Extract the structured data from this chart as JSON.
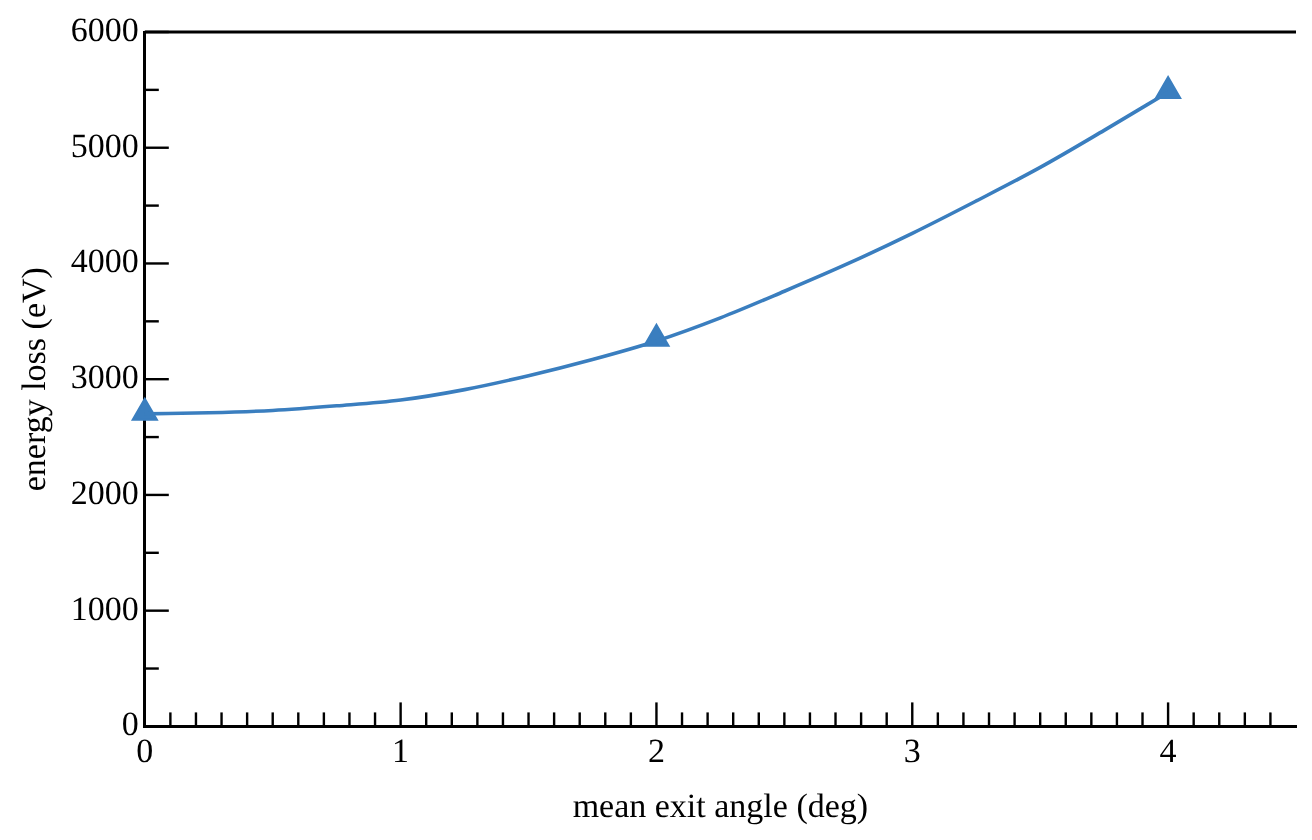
{
  "chart_data": {
    "type": "line",
    "xlabel": "mean exit angle (deg)",
    "ylabel": "energy loss (eV)",
    "series": [
      {
        "color": "#3a7ebf",
        "marker": "none",
        "x": [
          0,
          0.25,
          0.5,
          0.75,
          1,
          1.25,
          1.5,
          1.75,
          2,
          2.25,
          2.5,
          2.75,
          3,
          3.25,
          3.5,
          3.75,
          4
        ],
        "values": [
          2700,
          2710,
          2730,
          2770,
          2820,
          2910,
          3030,
          3170,
          3330,
          3530,
          3760,
          4000,
          4260,
          4540,
          4830,
          5150,
          5480
        ]
      },
      {
        "type": "scatter",
        "color": "#3a7ebf",
        "marker": "triangle",
        "x": [
          0,
          2,
          4
        ],
        "values": [
          2710,
          3350,
          5490
        ]
      }
    ],
    "xlim": [
      0,
      4.5
    ],
    "xticks": [
      0,
      {
        "value": 0.1,
        "label": null
      },
      {
        "value": 0.2,
        "label": null
      },
      {
        "value": 0.3,
        "label": null
      },
      {
        "value": 0.4,
        "label": null
      },
      {
        "value": 0.5,
        "label": null
      },
      {
        "value": 0.6,
        "label": null
      },
      {
        "value": 0.7,
        "label": null
      },
      {
        "value": 0.8,
        "label": null
      },
      {
        "value": 0.9,
        "label": null
      },
      1,
      {
        "value": 1.1,
        "label": null
      },
      {
        "value": 1.2,
        "label": null
      },
      {
        "value": 1.3,
        "label": null
      },
      {
        "value": 1.4,
        "label": null
      },
      {
        "value": 1.5,
        "label": null
      },
      {
        "value": 1.6,
        "label": null
      },
      {
        "value": 1.7,
        "label": null
      },
      {
        "value": 1.8,
        "label": null
      },
      {
        "value": 1.9,
        "label": null
      },
      2,
      {
        "value": 2.1,
        "label": null
      },
      {
        "value": 2.2,
        "label": null
      },
      {
        "value": 2.3,
        "label": null
      },
      {
        "value": 2.4,
        "label": null
      },
      {
        "value": 2.5,
        "label": null
      },
      {
        "value": 2.6,
        "label": null
      },
      {
        "value": 2.7,
        "label": null
      },
      {
        "value": 2.8,
        "label": null
      },
      {
        "value": 2.9,
        "label": null
      },
      3,
      {
        "value": 3.1,
        "label": null
      },
      {
        "value": 3.2,
        "label": null
      },
      {
        "value": 3.3,
        "label": null
      },
      {
        "value": 3.4,
        "label": null
      },
      {
        "value": 3.5,
        "label": null
      },
      {
        "value": 3.6,
        "label": null
      },
      {
        "value": 3.7,
        "label": null
      },
      {
        "value": 3.8,
        "label": null
      },
      {
        "value": 3.9,
        "label": null
      },
      4,
      {
        "value": 4.1,
        "label": null
      },
      {
        "value": 4.2,
        "label": null
      },
      {
        "value": 4.3,
        "label": null
      },
      {
        "value": 4.4,
        "label": null
      }
    ],
    "ylim": [
      0,
      6000
    ],
    "yticks": [
      0,
      {
        "value": 500,
        "label": null
      },
      1000,
      {
        "value": 1500,
        "label": null
      },
      2000,
      {
        "value": 2500,
        "label": null
      },
      3000,
      {
        "value": 3500,
        "label": null
      },
      4000,
      {
        "value": 4500,
        "label": null
      },
      5000,
      {
        "value": 5500,
        "label": null
      },
      6000
    ],
    "grid": false,
    "legend": false
  }
}
